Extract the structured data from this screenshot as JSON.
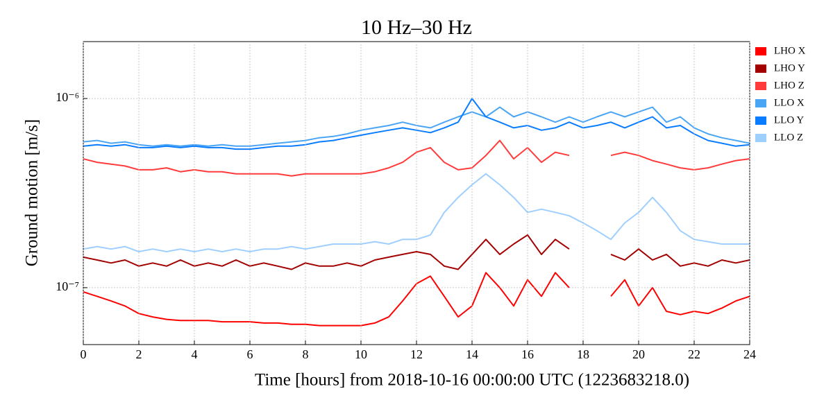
{
  "chart_data": {
    "type": "line",
    "title": "10 Hz–30 Hz",
    "x_label": "Time [hours] from 2018-10-16 00:00:00 UTC (1223683218.0)",
    "y_label": "Ground motion [m/s]",
    "log_y": true,
    "grid": true,
    "legend": "right-outside",
    "xlim": [
      0,
      24
    ],
    "xticks": [
      0,
      2,
      4,
      6,
      8,
      10,
      12,
      14,
      16,
      18,
      20,
      22,
      24
    ],
    "ylim": [
      5e-08,
      2e-06
    ],
    "yticks": [
      {
        "value": 1e-07,
        "label": "10⁻⁷"
      },
      {
        "value": 1e-06,
        "label": "10⁻⁶"
      }
    ],
    "x": [
      0,
      0.5,
      1,
      1.5,
      2,
      2.5,
      3,
      3.5,
      4,
      4.5,
      5,
      5.5,
      6,
      6.5,
      7,
      7.5,
      8,
      8.5,
      9,
      9.5,
      10,
      10.5,
      11,
      11.5,
      12,
      12.5,
      13,
      13.5,
      14,
      14.5,
      15,
      15.5,
      16,
      16.5,
      17,
      17.5,
      18,
      18.5,
      19,
      19.5,
      20,
      20.5,
      21,
      21.5,
      22,
      22.5,
      23,
      23.5,
      24
    ],
    "series": [
      {
        "name": "LHO X",
        "color": "#ff0000",
        "values": [
          9.5e-08,
          9e-08,
          8.5e-08,
          8e-08,
          7.3e-08,
          7e-08,
          6.8e-08,
          6.7e-08,
          6.7e-08,
          6.7e-08,
          6.6e-08,
          6.6e-08,
          6.6e-08,
          6.5e-08,
          6.5e-08,
          6.4e-08,
          6.4e-08,
          6.3e-08,
          6.3e-08,
          6.3e-08,
          6.3e-08,
          6.5e-08,
          7e-08,
          8.5e-08,
          1.05e-07,
          1.15e-07,
          9e-08,
          7e-08,
          8e-08,
          1.2e-07,
          1e-07,
          8e-08,
          1.1e-07,
          9e-08,
          1.2e-07,
          1e-07,
          null,
          null,
          9e-08,
          1.1e-07,
          8e-08,
          1e-07,
          7.5e-08,
          7.2e-08,
          7.5e-08,
          7.3e-08,
          7.8e-08,
          8.5e-08,
          9e-08
        ]
      },
      {
        "name": "LHO Y",
        "color": "#a30000",
        "values": [
          1.45e-07,
          1.4e-07,
          1.35e-07,
          1.4e-07,
          1.3e-07,
          1.35e-07,
          1.3e-07,
          1.4e-07,
          1.3e-07,
          1.35e-07,
          1.3e-07,
          1.4e-07,
          1.3e-07,
          1.35e-07,
          1.3e-07,
          1.25e-07,
          1.35e-07,
          1.3e-07,
          1.3e-07,
          1.35e-07,
          1.3e-07,
          1.4e-07,
          1.45e-07,
          1.5e-07,
          1.55e-07,
          1.5e-07,
          1.3e-07,
          1.25e-07,
          1.5e-07,
          1.8e-07,
          1.5e-07,
          1.7e-07,
          1.9e-07,
          1.5e-07,
          1.8e-07,
          1.6e-07,
          null,
          null,
          1.5e-07,
          1.4e-07,
          1.6e-07,
          1.4e-07,
          1.5e-07,
          1.3e-07,
          1.35e-07,
          1.3e-07,
          1.4e-07,
          1.35e-07,
          1.4e-07
        ]
      },
      {
        "name": "LHO Z",
        "color": "#ff3b3b",
        "values": [
          4.8e-07,
          4.6e-07,
          4.5e-07,
          4.4e-07,
          4.2e-07,
          4.2e-07,
          4.3e-07,
          4.1e-07,
          4.2e-07,
          4.1e-07,
          4.1e-07,
          4e-07,
          4e-07,
          4e-07,
          4e-07,
          3.9e-07,
          4e-07,
          4e-07,
          4e-07,
          4e-07,
          4e-07,
          4.1e-07,
          4.3e-07,
          4.6e-07,
          5.2e-07,
          5.5e-07,
          4.6e-07,
          4.2e-07,
          4.3e-07,
          5e-07,
          6e-07,
          4.8e-07,
          5.5e-07,
          4.6e-07,
          5.2e-07,
          5e-07,
          null,
          null,
          5e-07,
          5.2e-07,
          5e-07,
          4.7e-07,
          4.5e-07,
          4.3e-07,
          4.2e-07,
          4.3e-07,
          4.5e-07,
          4.7e-07,
          4.8e-07
        ]
      },
      {
        "name": "LLO X",
        "color": "#4aa5f5",
        "values": [
          5.9e-07,
          6e-07,
          5.8e-07,
          5.9e-07,
          5.7e-07,
          5.6e-07,
          5.7e-07,
          5.6e-07,
          5.7e-07,
          5.6e-07,
          5.7e-07,
          5.6e-07,
          5.6e-07,
          5.7e-07,
          5.8e-07,
          5.9e-07,
          6e-07,
          6.2e-07,
          6.3e-07,
          6.5e-07,
          6.8e-07,
          7e-07,
          7.2e-07,
          7.5e-07,
          7.2e-07,
          7e-07,
          7.5e-07,
          8e-07,
          8.5e-07,
          8e-07,
          9e-07,
          8e-07,
          8.5e-07,
          8e-07,
          7.5e-07,
          8e-07,
          7.5e-07,
          8e-07,
          8.5e-07,
          8e-07,
          8.5e-07,
          9e-07,
          7.5e-07,
          8e-07,
          7e-07,
          6.5e-07,
          6.2e-07,
          6e-07,
          5.8e-07
        ]
      },
      {
        "name": "LLO Y",
        "color": "#0a7cff",
        "values": [
          5.6e-07,
          5.7e-07,
          5.6e-07,
          5.7e-07,
          5.5e-07,
          5.5e-07,
          5.6e-07,
          5.5e-07,
          5.6e-07,
          5.5e-07,
          5.5e-07,
          5.4e-07,
          5.4e-07,
          5.5e-07,
          5.6e-07,
          5.6e-07,
          5.7e-07,
          5.9e-07,
          6e-07,
          6.2e-07,
          6.4e-07,
          6.6e-07,
          6.8e-07,
          7e-07,
          6.8e-07,
          6.6e-07,
          7e-07,
          7.5e-07,
          1e-06,
          8e-07,
          7.5e-07,
          7e-07,
          7.2e-07,
          6.8e-07,
          7e-07,
          7.5e-07,
          7e-07,
          7.2e-07,
          7.5e-07,
          7e-07,
          7.5e-07,
          8e-07,
          7e-07,
          7.2e-07,
          6.5e-07,
          6e-07,
          5.8e-07,
          5.6e-07,
          5.7e-07
        ]
      },
      {
        "name": "LLO Z",
        "color": "#9ecfff",
        "values": [
          1.6e-07,
          1.65e-07,
          1.6e-07,
          1.65e-07,
          1.55e-07,
          1.6e-07,
          1.55e-07,
          1.6e-07,
          1.55e-07,
          1.6e-07,
          1.55e-07,
          1.6e-07,
          1.55e-07,
          1.6e-07,
          1.6e-07,
          1.65e-07,
          1.6e-07,
          1.65e-07,
          1.7e-07,
          1.7e-07,
          1.7e-07,
          1.75e-07,
          1.7e-07,
          1.8e-07,
          1.8e-07,
          1.9e-07,
          2.5e-07,
          3e-07,
          3.5e-07,
          4e-07,
          3.5e-07,
          3e-07,
          2.5e-07,
          2.6e-07,
          2.5e-07,
          2.4e-07,
          2.2e-07,
          2e-07,
          1.8e-07,
          2.2e-07,
          2.5e-07,
          3e-07,
          2.5e-07,
          2e-07,
          1.8e-07,
          1.75e-07,
          1.7e-07,
          1.7e-07,
          1.7e-07
        ]
      }
    ]
  }
}
